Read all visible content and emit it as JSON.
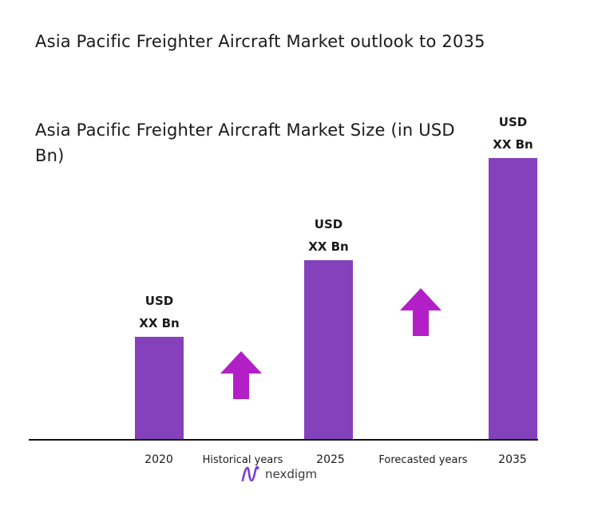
{
  "colors": {
    "bar": "#8540bb",
    "arrow": "#b31fc7",
    "axis": "#111111",
    "logo": "#7a3dd8",
    "text": "#1a1a1a"
  },
  "chart_data": {
    "type": "bar",
    "title": "Asia Pacific Freighter Aircraft Market outlook to 2035",
    "subtitle": "Asia Pacific Freighter Aircraft Market Size (in USD Bn)",
    "categories": [
      "2020",
      "2025",
      "2035"
    ],
    "values": [
      1,
      1.75,
      2.75
    ],
    "value_labels": [
      [
        "USD",
        "XX Bn"
      ],
      [
        "USD",
        "XX Bn"
      ],
      [
        "USD",
        "XX Bn"
      ]
    ],
    "period_labels": [
      "Historical years",
      "Forecasted years"
    ],
    "growth_arrows": [
      "arrow-up-icon",
      "arrow-up-icon"
    ],
    "ylim": [
      0,
      3
    ],
    "grid": false,
    "legend": "none",
    "xlabel": "",
    "ylabel": ""
  },
  "brand": {
    "icon": "nexdigm-logo-icon",
    "name": "nexdigm"
  }
}
